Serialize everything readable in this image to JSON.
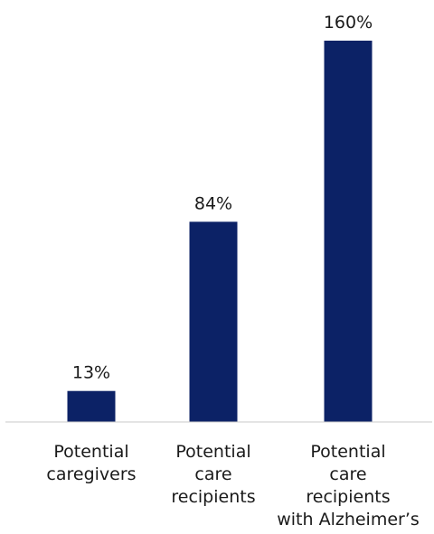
{
  "chart_data": {
    "type": "bar",
    "categories": [
      [
        "Potential",
        "caregivers"
      ],
      [
        "Potential",
        "care",
        "recipients"
      ],
      [
        "Potential",
        "care",
        "recipients",
        "with Alzheimer’s"
      ]
    ],
    "values": [
      13,
      84,
      160
    ],
    "data_labels": [
      "13%",
      "84%",
      "160%"
    ],
    "title": "",
    "xlabel": "",
    "ylabel": "",
    "ylim": [
      0,
      160
    ],
    "grid": false,
    "legend": "none",
    "bar_color": "#0c2266",
    "axis_color": "#c8c8c8"
  }
}
